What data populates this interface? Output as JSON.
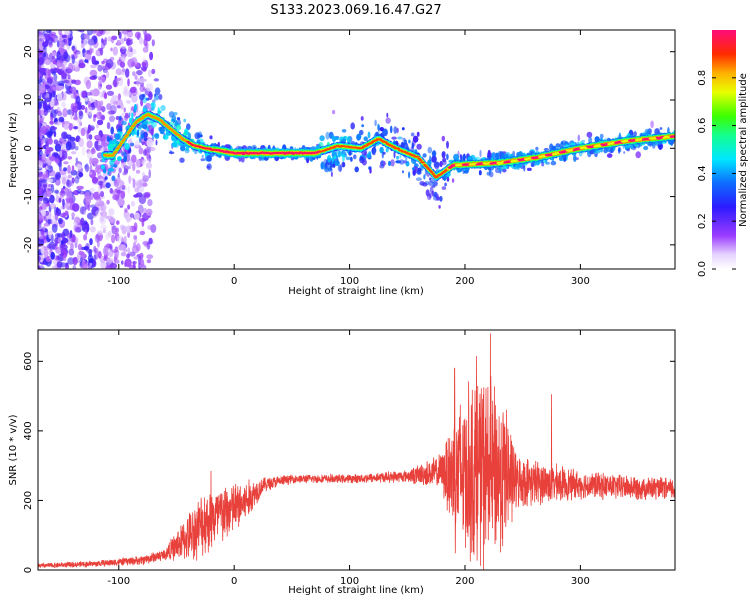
{
  "title": "S133.2023.069.16.47.G27",
  "chart_data": [
    {
      "type": "heatmap",
      "xlabel": "Height of straight line (km)",
      "ylabel": "Frequency (Hz)",
      "xlim": [
        -170,
        382
      ],
      "ylim": [
        -25,
        24.5
      ],
      "x_ticks": [
        -100,
        0,
        100,
        200,
        300
      ],
      "y_ticks": [
        -20,
        -10,
        0,
        10,
        20
      ],
      "x_tick_labels": [
        "-100",
        "0",
        "100",
        "200",
        "300"
      ],
      "y_tick_labels": [
        "-20",
        "-10",
        "0",
        "10",
        "20"
      ],
      "colorbar": {
        "label": "Normalized spectral amplitude",
        "range": [
          0,
          1
        ],
        "ticks": [
          "0.0",
          "0.2",
          "0.4",
          "0.6",
          "0.8"
        ],
        "tick_values": [
          0.0,
          0.2,
          0.4,
          0.6,
          0.8
        ],
        "colormap": "rainbow (white → purple → blue → cyan → green → yellow → orange → red → magenta)"
      },
      "ridge": [
        {
          "x": -105,
          "freq": -1.5
        },
        {
          "x": -95,
          "freq": 2
        },
        {
          "x": -85,
          "freq": 5.5
        },
        {
          "x": -75,
          "freq": 7
        },
        {
          "x": -65,
          "freq": 6
        },
        {
          "x": -55,
          "freq": 4
        },
        {
          "x": -45,
          "freq": 2
        },
        {
          "x": -35,
          "freq": 0.5
        },
        {
          "x": -25,
          "freq": 0
        },
        {
          "x": 0,
          "freq": -1
        },
        {
          "x": 70,
          "freq": -1
        },
        {
          "x": 90,
          "freq": 0.5
        },
        {
          "x": 110,
          "freq": 0
        },
        {
          "x": 125,
          "freq": 2
        },
        {
          "x": 140,
          "freq": 0
        },
        {
          "x": 160,
          "freq": -2
        },
        {
          "x": 175,
          "freq": -6
        },
        {
          "x": 190,
          "freq": -3.5
        },
        {
          "x": 230,
          "freq": -3
        },
        {
          "x": 260,
          "freq": -2
        },
        {
          "x": 300,
          "freq": 0
        },
        {
          "x": 340,
          "freq": 1.5
        },
        {
          "x": 382,
          "freq": 2.5
        }
      ]
    },
    {
      "type": "line",
      "xlabel": "Height of straight line (km)",
      "ylabel": "SNR (10 * v/v)",
      "xlim": [
        -170,
        382
      ],
      "ylim": [
        0,
        690
      ],
      "x_ticks": [
        -100,
        0,
        100,
        200,
        300
      ],
      "y_ticks": [
        0,
        200,
        400,
        600
      ],
      "x_tick_labels": [
        "-100",
        "0",
        "100",
        "200",
        "300"
      ],
      "y_tick_labels": [
        "0",
        "200",
        "400",
        "600"
      ],
      "line_color": "#e8403a",
      "envelope": [
        {
          "x": -170,
          "mean": 12,
          "amp": 8
        },
        {
          "x": -120,
          "mean": 18,
          "amp": 10
        },
        {
          "x": -80,
          "mean": 28,
          "amp": 15
        },
        {
          "x": -60,
          "mean": 45,
          "amp": 20
        },
        {
          "x": -40,
          "mean": 95,
          "amp": 75
        },
        {
          "x": -25,
          "mean": 140,
          "amp": 110
        },
        {
          "x": -10,
          "mean": 160,
          "amp": 100
        },
        {
          "x": 10,
          "mean": 195,
          "amp": 70
        },
        {
          "x": 25,
          "mean": 245,
          "amp": 25
        },
        {
          "x": 50,
          "mean": 262,
          "amp": 14
        },
        {
          "x": 100,
          "mean": 262,
          "amp": 14
        },
        {
          "x": 150,
          "mean": 270,
          "amp": 20
        },
        {
          "x": 180,
          "mean": 282,
          "amp": 60
        },
        {
          "x": 192,
          "mean": 280,
          "amp": 250
        },
        {
          "x": 215,
          "mean": 290,
          "amp": 320
        },
        {
          "x": 235,
          "mean": 275,
          "amp": 240
        },
        {
          "x": 245,
          "mean": 255,
          "amp": 85
        },
        {
          "x": 300,
          "mean": 245,
          "amp": 45
        },
        {
          "x": 382,
          "mean": 232,
          "amp": 35
        }
      ],
      "peaks": [
        {
          "x": 222,
          "y": 680
        },
        {
          "x": 210,
          "y": 615
        },
        {
          "x": 191,
          "y": 580
        },
        {
          "x": 275,
          "y": 505
        },
        {
          "x": -20,
          "y": 285
        }
      ]
    }
  ]
}
